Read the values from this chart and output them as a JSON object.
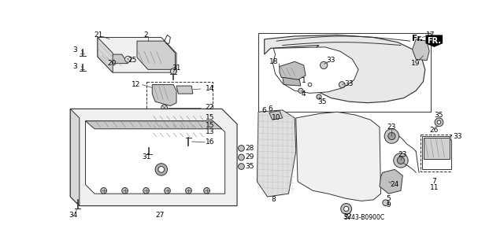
{
  "bg_color": "#ffffff",
  "diagram_code": "SV43-B0900C",
  "line_color": "#333333",
  "label_color": "#000000",
  "hatch_color": "#999999",
  "fill_light": "#e8e8e8",
  "fill_mid": "#cccccc",
  "fill_dark": "#aaaaaa"
}
